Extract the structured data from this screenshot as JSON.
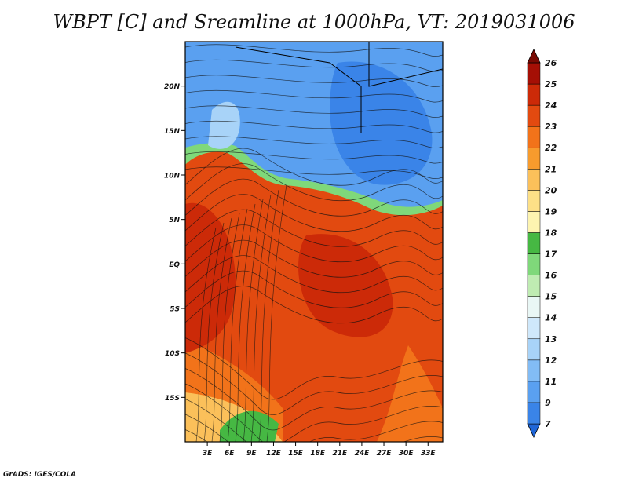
{
  "title": "WBPT [C] and Sreamline at 1000hPa, VT: 2019031006",
  "credit": "GrADS: IGES/COLA",
  "map": {
    "lat_labels": [
      "20N",
      "15N",
      "10N",
      "5N",
      "EQ",
      "5S",
      "10S",
      "15S"
    ],
    "lon_labels": [
      "3E",
      "6E",
      "9E",
      "12E",
      "15E",
      "18E",
      "21E",
      "24E",
      "27E",
      "30E",
      "33E"
    ],
    "lat_values": [
      20,
      15,
      10,
      5,
      0,
      -5,
      -10,
      -15
    ],
    "lon_values": [
      3,
      6,
      9,
      12,
      15,
      18,
      21,
      24,
      27,
      30,
      33
    ],
    "lon_range": [
      0,
      35
    ],
    "lat_range": [
      -20,
      25
    ]
  },
  "colorbar": {
    "labels": [
      "7",
      "9",
      "11",
      "12",
      "13",
      "14",
      "15",
      "16",
      "17",
      "18",
      "19",
      "20",
      "21",
      "22",
      "23",
      "24",
      "25",
      "26"
    ],
    "colors": [
      "#1f66d8",
      "#3a84e8",
      "#5aa0f0",
      "#82bcf5",
      "#a8d3f8",
      "#cfe8fb",
      "#e9f7f5",
      "#bfecb2",
      "#7fd87a",
      "#46b843",
      "#fdf4b0",
      "#fde087",
      "#fbc05a",
      "#f79b2d",
      "#f2731a",
      "#e24a10",
      "#cc2a08",
      "#a50f05",
      "#7a0a03"
    ]
  }
}
